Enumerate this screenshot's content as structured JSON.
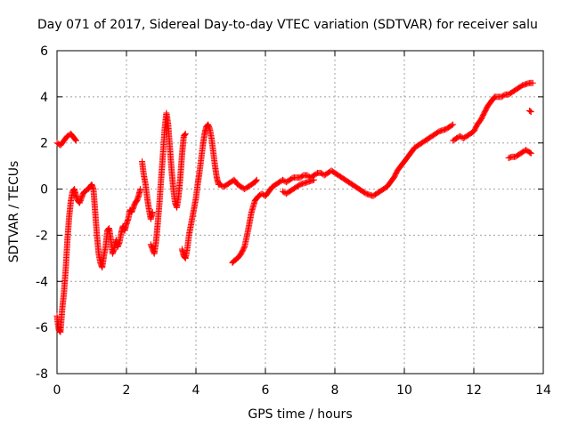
{
  "chart_data": {
    "type": "scatter",
    "title": "Day 071 of 2017, Sidereal Day-to-day VTEC variation (SDTVAR) for receiver salu",
    "xlabel": "GPS time / hours",
    "ylabel": "SDTVAR / TECUs",
    "xlim": [
      0,
      14
    ],
    "ylim": [
      -8,
      6
    ],
    "xticks": [
      "0",
      "2",
      "4",
      "6",
      "8",
      "10",
      "12",
      "14"
    ],
    "yticks": [
      "-8",
      "-6",
      "-4",
      "-2",
      "0",
      "2",
      "4",
      "6"
    ],
    "grid": true,
    "marker": "+",
    "color": "#ff0000",
    "series": [
      {
        "name": "SDTVAR",
        "segments": [
          [
            [
              0.0,
              2.0
            ],
            [
              0.1,
              1.9
            ],
            [
              0.2,
              2.1
            ],
            [
              0.3,
              2.3
            ],
            [
              0.4,
              2.4
            ],
            [
              0.5,
              2.2
            ],
            [
              0.55,
              2.1
            ]
          ],
          [
            [
              0.0,
              -5.5
            ],
            [
              0.05,
              -6.1
            ],
            [
              0.1,
              -6.2
            ],
            [
              0.15,
              -5.2
            ],
            [
              0.2,
              -4.5
            ],
            [
              0.25,
              -3.5
            ],
            [
              0.3,
              -2.2
            ],
            [
              0.35,
              -1.2
            ],
            [
              0.4,
              -0.5
            ],
            [
              0.45,
              -0.1
            ],
            [
              0.5,
              0.0
            ],
            [
              0.55,
              -0.3
            ],
            [
              0.6,
              -0.5
            ],
            [
              0.65,
              -0.6
            ],
            [
              0.7,
              -0.4
            ],
            [
              0.75,
              -0.2
            ],
            [
              0.8,
              -0.1
            ],
            [
              0.9,
              0.0
            ],
            [
              0.95,
              0.1
            ],
            [
              1.0,
              0.2
            ],
            [
              1.05,
              0.0
            ],
            [
              1.1,
              -1.0
            ],
            [
              1.15,
              -2.0
            ],
            [
              1.2,
              -2.8
            ],
            [
              1.25,
              -3.2
            ],
            [
              1.3,
              -3.4
            ],
            [
              1.35,
              -2.9
            ],
            [
              1.4,
              -2.5
            ],
            [
              1.45,
              -1.8
            ],
            [
              1.5,
              -1.7
            ],
            [
              1.55,
              -2.2
            ],
            [
              1.6,
              -2.8
            ],
            [
              1.65,
              -2.6
            ],
            [
              1.7,
              -2.2
            ],
            [
              1.75,
              -2.5
            ],
            [
              1.8,
              -2.3
            ],
            [
              1.85,
              -1.9
            ],
            [
              1.9,
              -1.6
            ],
            [
              1.95,
              -1.8
            ],
            [
              2.0,
              -1.5
            ],
            [
              2.05,
              -1.3
            ],
            [
              2.1,
              -0.9
            ],
            [
              2.15,
              -1.0
            ],
            [
              2.2,
              -0.8
            ],
            [
              2.25,
              -0.6
            ],
            [
              2.3,
              -0.5
            ],
            [
              2.35,
              -0.3
            ],
            [
              2.4,
              0.0
            ]
          ],
          [
            [
              2.45,
              1.2
            ],
            [
              2.5,
              0.6
            ],
            [
              2.55,
              0.2
            ],
            [
              2.6,
              -0.4
            ],
            [
              2.65,
              -0.9
            ],
            [
              2.7,
              -1.3
            ],
            [
              2.75,
              -1.0
            ]
          ],
          [
            [
              2.7,
              -2.4
            ],
            [
              2.75,
              -2.6
            ],
            [
              2.8,
              -2.8
            ],
            [
              2.85,
              -2.3
            ],
            [
              2.9,
              -1.5
            ],
            [
              2.95,
              -0.6
            ],
            [
              3.0,
              0.5
            ],
            [
              3.05,
              1.5
            ],
            [
              3.1,
              2.6
            ],
            [
              3.15,
              3.3
            ],
            [
              3.2,
              2.8
            ],
            [
              3.25,
              1.8
            ],
            [
              3.3,
              0.8
            ],
            [
              3.35,
              0.0
            ],
            [
              3.4,
              -0.6
            ],
            [
              3.45,
              -0.8
            ],
            [
              3.5,
              -0.3
            ],
            [
              3.55,
              0.5
            ],
            [
              3.6,
              1.5
            ],
            [
              3.65,
              2.3
            ],
            [
              3.7,
              2.4
            ]
          ],
          [
            [
              3.6,
              -2.6
            ],
            [
              3.65,
              -2.9
            ],
            [
              3.7,
              -3.0
            ],
            [
              3.75,
              -2.6
            ],
            [
              3.8,
              -2.0
            ],
            [
              3.85,
              -1.6
            ],
            [
              3.9,
              -1.2
            ],
            [
              3.95,
              -0.8
            ],
            [
              4.0,
              -0.4
            ],
            [
              4.05,
              0.2
            ],
            [
              4.1,
              0.7
            ],
            [
              4.15,
              1.3
            ],
            [
              4.2,
              1.9
            ],
            [
              4.25,
              2.4
            ],
            [
              4.3,
              2.7
            ],
            [
              4.35,
              2.8
            ],
            [
              4.4,
              2.6
            ],
            [
              4.45,
              2.2
            ],
            [
              4.5,
              1.6
            ],
            [
              4.55,
              1.0
            ],
            [
              4.6,
              0.5
            ],
            [
              4.65,
              0.2
            ],
            [
              4.7,
              0.2
            ],
            [
              4.8,
              0.1
            ],
            [
              4.9,
              0.2
            ],
            [
              5.0,
              0.3
            ],
            [
              5.1,
              0.4
            ],
            [
              5.2,
              0.2
            ],
            [
              5.3,
              0.1
            ],
            [
              5.4,
              0.0
            ],
            [
              5.5,
              0.1
            ],
            [
              5.6,
              0.2
            ],
            [
              5.7,
              0.3
            ],
            [
              5.75,
              0.4
            ]
          ],
          [
            [
              5.05,
              -3.2
            ],
            [
              5.1,
              -3.1
            ],
            [
              5.2,
              -3.0
            ],
            [
              5.3,
              -2.8
            ],
            [
              5.4,
              -2.5
            ],
            [
              5.5,
              -1.8
            ],
            [
              5.6,
              -1.0
            ],
            [
              5.7,
              -0.5
            ],
            [
              5.8,
              -0.3
            ],
            [
              5.9,
              -0.2
            ],
            [
              6.0,
              -0.3
            ],
            [
              6.1,
              -0.1
            ],
            [
              6.2,
              0.1
            ],
            [
              6.3,
              0.2
            ],
            [
              6.4,
              0.3
            ],
            [
              6.5,
              0.4
            ],
            [
              6.6,
              0.3
            ],
            [
              6.7,
              0.4
            ],
            [
              6.8,
              0.5
            ],
            [
              6.9,
              0.5
            ],
            [
              7.0,
              0.5
            ],
            [
              7.1,
              0.6
            ],
            [
              7.2,
              0.6
            ],
            [
              7.3,
              0.5
            ],
            [
              7.4,
              0.6
            ],
            [
              7.5,
              0.7
            ],
            [
              7.6,
              0.7
            ],
            [
              7.7,
              0.6
            ],
            [
              7.8,
              0.7
            ],
            [
              7.9,
              0.8
            ],
            [
              8.0,
              0.7
            ],
            [
              8.1,
              0.6
            ],
            [
              8.2,
              0.5
            ],
            [
              8.3,
              0.4
            ],
            [
              8.4,
              0.3
            ],
            [
              8.5,
              0.2
            ],
            [
              8.6,
              0.1
            ],
            [
              8.7,
              0.0
            ],
            [
              8.8,
              -0.1
            ],
            [
              8.9,
              -0.2
            ],
            [
              9.0,
              -0.25
            ],
            [
              9.1,
              -0.3
            ],
            [
              9.2,
              -0.2
            ],
            [
              9.3,
              -0.1
            ],
            [
              9.4,
              0.0
            ],
            [
              9.5,
              0.1
            ],
            [
              9.6,
              0.3
            ],
            [
              9.7,
              0.5
            ],
            [
              9.8,
              0.8
            ],
            [
              9.9,
              1.0
            ],
            [
              10.0,
              1.2
            ],
            [
              10.1,
              1.4
            ],
            [
              10.2,
              1.6
            ],
            [
              10.3,
              1.8
            ],
            [
              10.4,
              1.9
            ],
            [
              10.5,
              2.0
            ],
            [
              10.6,
              2.1
            ],
            [
              10.7,
              2.2
            ],
            [
              10.8,
              2.3
            ],
            [
              10.9,
              2.4
            ],
            [
              11.0,
              2.5
            ],
            [
              11.1,
              2.55
            ],
            [
              11.2,
              2.6
            ],
            [
              11.3,
              2.7
            ],
            [
              11.4,
              2.8
            ]
          ],
          [
            [
              6.5,
              -0.1
            ],
            [
              6.6,
              -0.2
            ],
            [
              6.7,
              -0.1
            ],
            [
              6.8,
              0.0
            ],
            [
              6.9,
              0.1
            ],
            [
              7.0,
              0.2
            ],
            [
              7.2,
              0.3
            ],
            [
              7.4,
              0.4
            ]
          ],
          [
            [
              11.4,
              2.1
            ],
            [
              11.5,
              2.2
            ],
            [
              11.6,
              2.3
            ],
            [
              11.7,
              2.2
            ],
            [
              11.8,
              2.3
            ],
            [
              11.9,
              2.4
            ],
            [
              12.0,
              2.5
            ],
            [
              12.1,
              2.8
            ],
            [
              12.2,
              3.0
            ],
            [
              12.3,
              3.3
            ],
            [
              12.4,
              3.6
            ],
            [
              12.5,
              3.8
            ],
            [
              12.6,
              4.0
            ],
            [
              12.7,
              4.0
            ],
            [
              12.8,
              4.0
            ],
            [
              12.9,
              4.1
            ],
            [
              13.0,
              4.1
            ],
            [
              13.1,
              4.2
            ],
            [
              13.2,
              4.3
            ],
            [
              13.3,
              4.4
            ],
            [
              13.4,
              4.5
            ],
            [
              13.5,
              4.55
            ],
            [
              13.6,
              4.6
            ],
            [
              13.7,
              4.6
            ]
          ],
          [
            [
              13.0,
              1.35
            ],
            [
              13.1,
              1.4
            ],
            [
              13.2,
              1.4
            ],
            [
              13.3,
              1.5
            ],
            [
              13.4,
              1.6
            ],
            [
              13.5,
              1.7
            ],
            [
              13.6,
              1.6
            ],
            [
              13.65,
              1.55
            ]
          ],
          [
            [
              13.6,
              3.4
            ],
            [
              13.65,
              3.35
            ]
          ]
        ]
      }
    ]
  }
}
